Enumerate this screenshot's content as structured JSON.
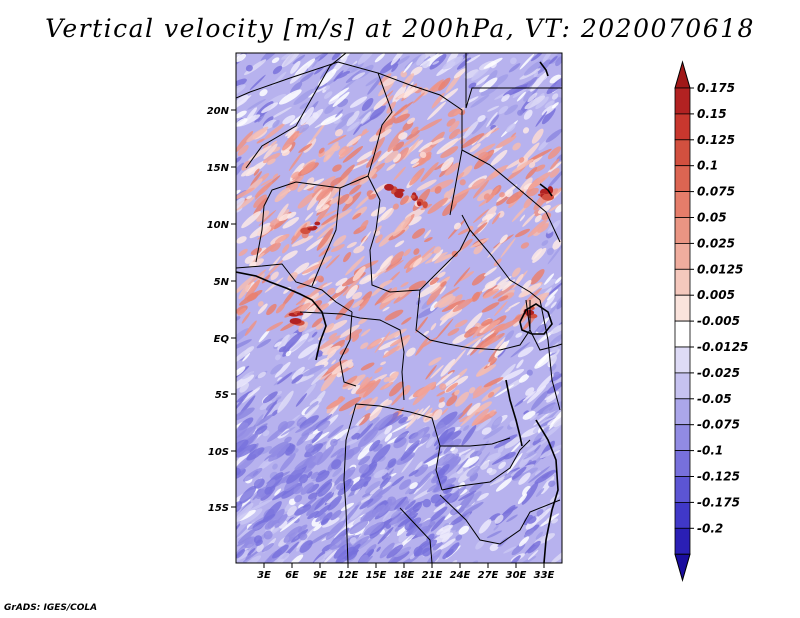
{
  "title": "Vertical velocity [m/s] at 200hPa, VT: 2020070618",
  "footer": "GrADS: IGES/COLA",
  "map": {
    "lat_labels": [
      "20N",
      "15N",
      "10N",
      "5N",
      "EQ",
      "5S",
      "10S",
      "15S"
    ],
    "lon_labels": [
      "3E",
      "6E",
      "9E",
      "12E",
      "15E",
      "18E",
      "21E",
      "24E",
      "27E",
      "30E",
      "33E"
    ]
  },
  "colorbar": {
    "labels": [
      "0.175",
      "0.15",
      "0.125",
      "0.1",
      "0.075",
      "0.05",
      "0.025",
      "0.0125",
      "0.005",
      "-0.005",
      "-0.0125",
      "-0.025",
      "-0.05",
      "-0.075",
      "-0.1",
      "-0.125",
      "-0.175",
      "-0.2"
    ],
    "colors": [
      "#b22222",
      "#c8372e",
      "#d2503f",
      "#dc6552",
      "#e57d6a",
      "#ea9583",
      "#f0ad9e",
      "#f5c8bd",
      "#fae3dc",
      "#ffffff",
      "#dedbf6",
      "#c6c2f0",
      "#aba6ea",
      "#918be3",
      "#7770dc",
      "#5c55d4",
      "#4038c8",
      "#2a1fb5",
      "#1a0d9e"
    ],
    "upper_color": "#a01818",
    "lower_color": "#1a0d9e"
  }
}
